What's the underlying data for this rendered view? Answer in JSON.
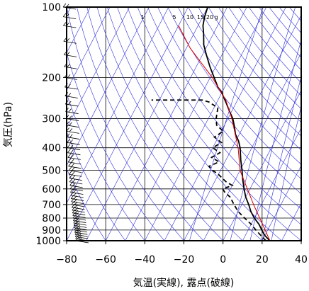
{
  "chart_data": {
    "type": "line",
    "subtype": "skew-T log-P emagram",
    "xlabel": "気温(実線), 露点(破線)",
    "ylabel": "気圧(hPa)",
    "xlim": [
      -80,
      40
    ],
    "ylim": [
      1000,
      100
    ],
    "y_scale": "log",
    "x_ticks": [
      -80,
      -60,
      -40,
      -20,
      0,
      20,
      40
    ],
    "x_tick_labels": [
      "−80",
      "−60",
      "−40",
      "−20",
      "0",
      "20",
      "40"
    ],
    "y_ticks": [
      100,
      200,
      300,
      400,
      500,
      600,
      700,
      800,
      900,
      1000
    ],
    "grid": true,
    "mixing_ratio_labels": [
      "1",
      "5",
      "10",
      "15",
      "20",
      "g"
    ],
    "colors": {
      "temperature": "#000000",
      "dewpoint": "#000000",
      "reference": "#e00000",
      "grid": "#3030dd",
      "frame": "#000000"
    },
    "series": [
      {
        "name": "",
        "style": "solid",
        "points": [
          [
            1000,
            24
          ],
          [
            975,
            22
          ],
          [
            950,
            20
          ],
          [
            925,
            18.5
          ],
          [
            900,
            17
          ],
          [
            850,
            14
          ],
          [
            800,
            10
          ],
          [
            750,
            6.5
          ],
          [
            700,
            3.5
          ],
          [
            650,
            0
          ],
          [
            600,
            -3
          ],
          [
            550,
            -6
          ],
          [
            500,
            -9
          ],
          [
            450,
            -12.5
          ],
          [
            400,
            -16
          ],
          [
            375,
            -18.5
          ],
          [
            350,
            -22
          ],
          [
            325,
            -24.5
          ],
          [
            300,
            -27.5
          ],
          [
            280,
            -31
          ],
          [
            260,
            -34.5
          ],
          [
            240,
            -38.5
          ],
          [
            230,
            -40.5
          ],
          [
            220,
            -43.5
          ],
          [
            200,
            -48
          ],
          [
            180,
            -53
          ],
          [
            160,
            -58
          ],
          [
            145,
            -62
          ],
          [
            130,
            -65
          ],
          [
            120,
            -67.5
          ],
          [
            110,
            -69
          ],
          [
            100,
            -70
          ]
        ]
      },
      {
        "name": "",
        "style": "dashed",
        "points": [
          [
            1000,
            22
          ],
          [
            975,
            20
          ],
          [
            950,
            18
          ],
          [
            925,
            16
          ],
          [
            900,
            14
          ],
          [
            850,
            10
          ],
          [
            800,
            5
          ],
          [
            750,
            0
          ],
          [
            700,
            -4
          ],
          [
            650,
            -8
          ],
          [
            620,
            -12
          ],
          [
            600,
            -14
          ],
          [
            590,
            -12
          ],
          [
            580,
            -10
          ],
          [
            560,
            -14
          ],
          [
            540,
            -17
          ],
          [
            520,
            -20
          ],
          [
            500,
            -24
          ],
          [
            480,
            -27
          ],
          [
            460,
            -23
          ],
          [
            440,
            -28
          ],
          [
            420,
            -25
          ],
          [
            400,
            -30
          ],
          [
            380,
            -27
          ],
          [
            360,
            -32
          ],
          [
            340,
            -29
          ],
          [
            320,
            -34
          ],
          [
            300,
            -36
          ],
          [
            270,
            -38
          ],
          [
            255,
            -44
          ],
          [
            250,
            -48
          ],
          [
            250,
            -74
          ]
        ]
      },
      {
        "name": "",
        "style": "solid-thin",
        "points": [
          [
            1000,
            24
          ],
          [
            700,
            6
          ],
          [
            500,
            -10
          ],
          [
            400,
            -17
          ],
          [
            300,
            -28
          ],
          [
            250,
            -36
          ],
          [
            200,
            -49
          ],
          [
            150,
            -68
          ],
          [
            120,
            -80
          ]
        ]
      }
    ],
    "wind_barbs": {
      "pressures": [
        1000,
        980,
        960,
        940,
        920,
        900,
        880,
        860,
        840,
        820,
        800,
        780,
        760,
        740,
        720,
        700,
        680,
        660,
        640,
        620,
        600,
        580,
        560,
        540,
        520,
        500,
        480,
        460,
        440,
        420,
        400,
        380,
        360,
        340,
        320,
        300,
        280,
        260,
        240,
        220,
        200,
        180,
        160,
        140,
        120,
        110,
        100
      ]
    }
  }
}
